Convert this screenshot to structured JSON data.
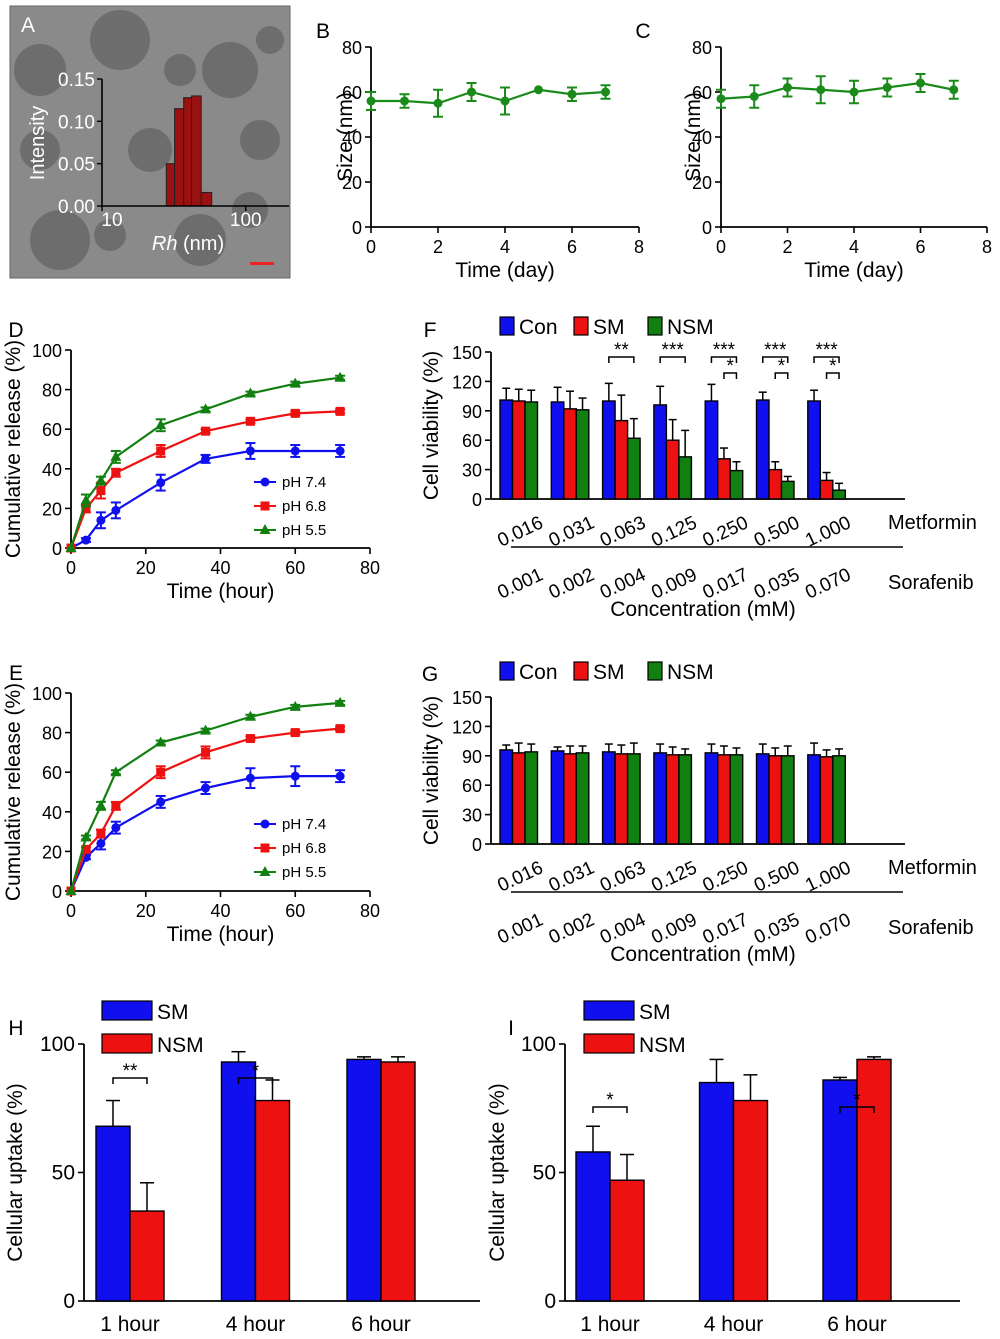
{
  "panel_letters": {
    "a": "A",
    "b": "B",
    "c": "C",
    "d": "D",
    "e": "E",
    "f": "F",
    "g": "G",
    "h": "H",
    "i": "I"
  },
  "colors": {
    "blue": "#1010ee",
    "red": "#ee1111",
    "green": "#118011",
    "line_green": "#1a8a1a",
    "tem_bg": "#8a8a8a",
    "hist_bar": "#9b1010",
    "scale_bar": "#ee2222"
  },
  "chart_data": [
    {
      "id": "A",
      "type": "bar",
      "title": "",
      "background": "TEM micrograph of nanoparticles with inset histogram",
      "xlabel_italic": "Rh",
      "xlabel_rest": " (nm)",
      "ylabel": "Intensity",
      "xscale": "log",
      "xlim": [
        10,
        200
      ],
      "ylim": [
        0,
        0.15
      ],
      "yticks": [
        "0.00",
        "0.05",
        "0.10",
        "0.15"
      ],
      "xticks": [
        "10",
        "100"
      ],
      "bins": [
        [
          28,
          32,
          0.05
        ],
        [
          32,
          37,
          0.115
        ],
        [
          37,
          42,
          0.128
        ],
        [
          42,
          49,
          0.13
        ],
        [
          49,
          58,
          0.016
        ]
      ]
    },
    {
      "id": "B",
      "type": "line",
      "xlabel": "Time (day)",
      "ylabel": "Size (nm)",
      "xlim": [
        0,
        8
      ],
      "ylim": [
        0,
        80
      ],
      "xticks": [
        "0",
        "2",
        "4",
        "6",
        "8"
      ],
      "yticks": [
        "0",
        "20",
        "40",
        "60",
        "80"
      ],
      "series": [
        {
          "name": "size",
          "x": [
            0,
            1,
            2,
            3,
            4,
            5,
            6,
            7
          ],
          "values": [
            56,
            56,
            55,
            60,
            56,
            61,
            59,
            60
          ],
          "err": [
            4,
            3,
            6,
            4,
            6,
            0,
            3,
            3
          ]
        }
      ]
    },
    {
      "id": "C",
      "type": "line",
      "xlabel": "Time (day)",
      "ylabel": "Size (nm)",
      "xlim": [
        0,
        8
      ],
      "ylim": [
        0,
        80
      ],
      "xticks": [
        "0",
        "2",
        "4",
        "6",
        "8"
      ],
      "yticks": [
        "0",
        "20",
        "40",
        "60",
        "80"
      ],
      "series": [
        {
          "name": "size",
          "x": [
            0,
            1,
            2,
            3,
            4,
            5,
            6,
            7
          ],
          "values": [
            57,
            58,
            62,
            61,
            60,
            62,
            64,
            61
          ],
          "err": [
            4,
            5,
            4,
            6,
            5,
            4,
            4,
            4
          ]
        }
      ]
    },
    {
      "id": "D",
      "type": "line",
      "xlabel": "Time (hour)",
      "ylabel": "Cumulative release  (%)",
      "xlim": [
        0,
        80
      ],
      "ylim": [
        0,
        100
      ],
      "xticks": [
        "0",
        "20",
        "40",
        "60",
        "80"
      ],
      "yticks": [
        "0",
        "20",
        "40",
        "60",
        "80",
        "100"
      ],
      "series": [
        {
          "name": "pH 7.4",
          "color": "blue",
          "marker": "circle",
          "x": [
            0,
            4,
            8,
            12,
            24,
            36,
            48,
            60,
            72
          ],
          "values": [
            0,
            4,
            14,
            19,
            33,
            45,
            49,
            49,
            49
          ],
          "err": [
            0,
            1,
            4,
            4,
            4,
            2,
            4,
            3,
            3
          ]
        },
        {
          "name": "pH 6.8",
          "color": "red",
          "marker": "square",
          "x": [
            0,
            4,
            8,
            12,
            24,
            36,
            48,
            60,
            72
          ],
          "values": [
            0,
            20,
            29,
            38,
            49,
            59,
            64,
            68,
            69
          ],
          "err": [
            0,
            2,
            4,
            2,
            3,
            1,
            1,
            1,
            1
          ]
        },
        {
          "name": "pH 5.5",
          "color": "green",
          "marker": "triangle",
          "x": [
            0,
            4,
            8,
            12,
            24,
            36,
            48,
            60,
            72
          ],
          "values": [
            0,
            24,
            34,
            46,
            62,
            70,
            78,
            83,
            86
          ],
          "err": [
            0,
            3,
            2,
            3,
            3,
            1,
            1,
            1,
            1
          ]
        }
      ]
    },
    {
      "id": "E",
      "type": "line",
      "xlabel": "Time (hour)",
      "ylabel": "Cumulative release  (%)",
      "xlim": [
        0,
        80
      ],
      "ylim": [
        0,
        100
      ],
      "xticks": [
        "0",
        "20",
        "40",
        "60",
        "80"
      ],
      "yticks": [
        "0",
        "20",
        "40",
        "60",
        "80",
        "100"
      ],
      "series": [
        {
          "name": "pH 7.4",
          "color": "blue",
          "marker": "circle",
          "x": [
            0,
            4,
            8,
            12,
            24,
            36,
            48,
            60,
            72
          ],
          "values": [
            0,
            17,
            24,
            32,
            45,
            52,
            57,
            58,
            58
          ],
          "err": [
            0,
            1,
            3,
            3,
            3,
            3,
            5,
            5,
            3
          ]
        },
        {
          "name": "pH 6.8",
          "color": "red",
          "marker": "square",
          "x": [
            0,
            4,
            8,
            12,
            24,
            36,
            48,
            60,
            72
          ],
          "values": [
            0,
            21,
            29,
            43,
            60,
            70,
            77,
            80,
            82
          ],
          "err": [
            0,
            1,
            2,
            2,
            3,
            3,
            1,
            1,
            1
          ]
        },
        {
          "name": "pH 5.5",
          "color": "green",
          "marker": "triangle",
          "x": [
            0,
            4,
            8,
            12,
            24,
            36,
            48,
            60,
            72
          ],
          "values": [
            0,
            27,
            43,
            60,
            75,
            81,
            88,
            93,
            95
          ],
          "err": [
            0,
            1,
            2,
            1,
            1,
            1,
            1,
            1,
            1
          ]
        }
      ]
    },
    {
      "id": "F",
      "type": "bar",
      "ylabel": "Cell viability (%)",
      "xlabel": "Concentration (mM)",
      "ylim": [
        0,
        150
      ],
      "yticks": [
        "0",
        "30",
        "60",
        "90",
        "120",
        "150"
      ],
      "row1_label": "Metformin",
      "row2_label": "Sorafenib",
      "categories": [
        "0.016",
        "0.031",
        "0.063",
        "0.125",
        "0.250",
        "0.500",
        "1.000"
      ],
      "categories2": [
        "0.001",
        "0.002",
        "0.004",
        "0.009",
        "0.017",
        "0.035",
        "0.070"
      ],
      "series": [
        {
          "name": "Con",
          "color": "blue",
          "values": [
            101,
            99,
            100,
            96,
            100,
            101,
            100
          ],
          "err": [
            12,
            15,
            18,
            19,
            17,
            8,
            11
          ]
        },
        {
          "name": "SM",
          "color": "red",
          "values": [
            100,
            92,
            80,
            60,
            41,
            30,
            19
          ],
          "err": [
            12,
            18,
            26,
            21,
            11,
            8,
            8
          ]
        },
        {
          "name": "NSM",
          "color": "green",
          "values": [
            99,
            91,
            62,
            43,
            29,
            18,
            9
          ],
          "err": [
            12,
            12,
            20,
            27,
            9,
            5,
            7
          ]
        }
      ],
      "annotations": [
        {
          "group": 2,
          "from": 0,
          "to": 2,
          "level": 0,
          "text": "**"
        },
        {
          "group": 3,
          "from": 0,
          "to": 2,
          "level": 0,
          "text": "***"
        },
        {
          "group": 4,
          "from": 0,
          "to": 2,
          "level": 0,
          "text": "***"
        },
        {
          "group": 4,
          "from": 1,
          "to": 2,
          "level": 1,
          "text": "*"
        },
        {
          "group": 5,
          "from": 0,
          "to": 2,
          "level": 0,
          "text": "***"
        },
        {
          "group": 5,
          "from": 1,
          "to": 2,
          "level": 1,
          "text": "*"
        },
        {
          "group": 6,
          "from": 0,
          "to": 2,
          "level": 0,
          "text": "***"
        },
        {
          "group": 6,
          "from": 1,
          "to": 2,
          "level": 1,
          "text": "*"
        }
      ]
    },
    {
      "id": "G",
      "type": "bar",
      "ylabel": "Cell viability (%)",
      "xlabel": "Concentration (mM)",
      "ylim": [
        0,
        150
      ],
      "yticks": [
        "0",
        "30",
        "60",
        "90",
        "120",
        "150"
      ],
      "row1_label": "Metformin",
      "row2_label": "Sorafenib",
      "categories": [
        "0.016",
        "0.031",
        "0.063",
        "0.125",
        "0.250",
        "0.500",
        "1.000"
      ],
      "categories2": [
        "0.001",
        "0.002",
        "0.004",
        "0.009",
        "0.017",
        "0.035",
        "0.070"
      ],
      "series": [
        {
          "name": "Con",
          "color": "blue",
          "values": [
            96,
            95,
            94,
            93,
            93,
            92,
            91
          ],
          "err": [
            5,
            4,
            8,
            9,
            9,
            10,
            12
          ]
        },
        {
          "name": "SM",
          "color": "red",
          "values": [
            93,
            92,
            92,
            91,
            91,
            90,
            89
          ],
          "err": [
            10,
            8,
            9,
            8,
            9,
            8,
            7
          ]
        },
        {
          "name": "NSM",
          "color": "green",
          "values": [
            94,
            93,
            92,
            91,
            91,
            90,
            90
          ],
          "err": [
            8,
            7,
            11,
            6,
            7,
            10,
            7
          ]
        }
      ],
      "annotations": []
    },
    {
      "id": "H",
      "type": "bar",
      "ylabel": "Cellular uptake (%)",
      "xlabel": "",
      "ylim": [
        0,
        100
      ],
      "yticks": [
        "0",
        "50",
        "100"
      ],
      "categories": [
        "1 hour",
        "4 hour",
        "6 hour"
      ],
      "series": [
        {
          "name": "SM",
          "color": "blue",
          "values": [
            68,
            93,
            94
          ],
          "err": [
            10,
            4,
            1
          ]
        },
        {
          "name": "NSM",
          "color": "red",
          "values": [
            35,
            78,
            93
          ],
          "err": [
            11,
            8,
            2
          ]
        }
      ],
      "annotations": [
        {
          "group": 0,
          "from": 0,
          "to": 1,
          "level": 0,
          "text": "**"
        },
        {
          "group": 1,
          "from": 0,
          "to": 1,
          "level": 0,
          "text": "*"
        }
      ]
    },
    {
      "id": "I",
      "type": "bar",
      "ylabel": "Cellular uptake (%)",
      "xlabel": "",
      "ylim": [
        0,
        100
      ],
      "yticks": [
        "0",
        "50",
        "100"
      ],
      "categories": [
        "1 hour",
        "4 hour",
        "6 hour"
      ],
      "series": [
        {
          "name": "SM",
          "color": "blue",
          "values": [
            58,
            85,
            86
          ],
          "err": [
            10,
            9,
            1
          ]
        },
        {
          "name": "NSM",
          "color": "red",
          "values": [
            47,
            78,
            94
          ],
          "err": [
            10,
            10,
            1
          ]
        }
      ],
      "annotations": [
        {
          "group": 0,
          "from": 0,
          "to": 1,
          "level": 0,
          "text": "*"
        },
        {
          "group": 2,
          "from": 0,
          "to": 1,
          "level": 0,
          "text": "*"
        }
      ]
    }
  ]
}
